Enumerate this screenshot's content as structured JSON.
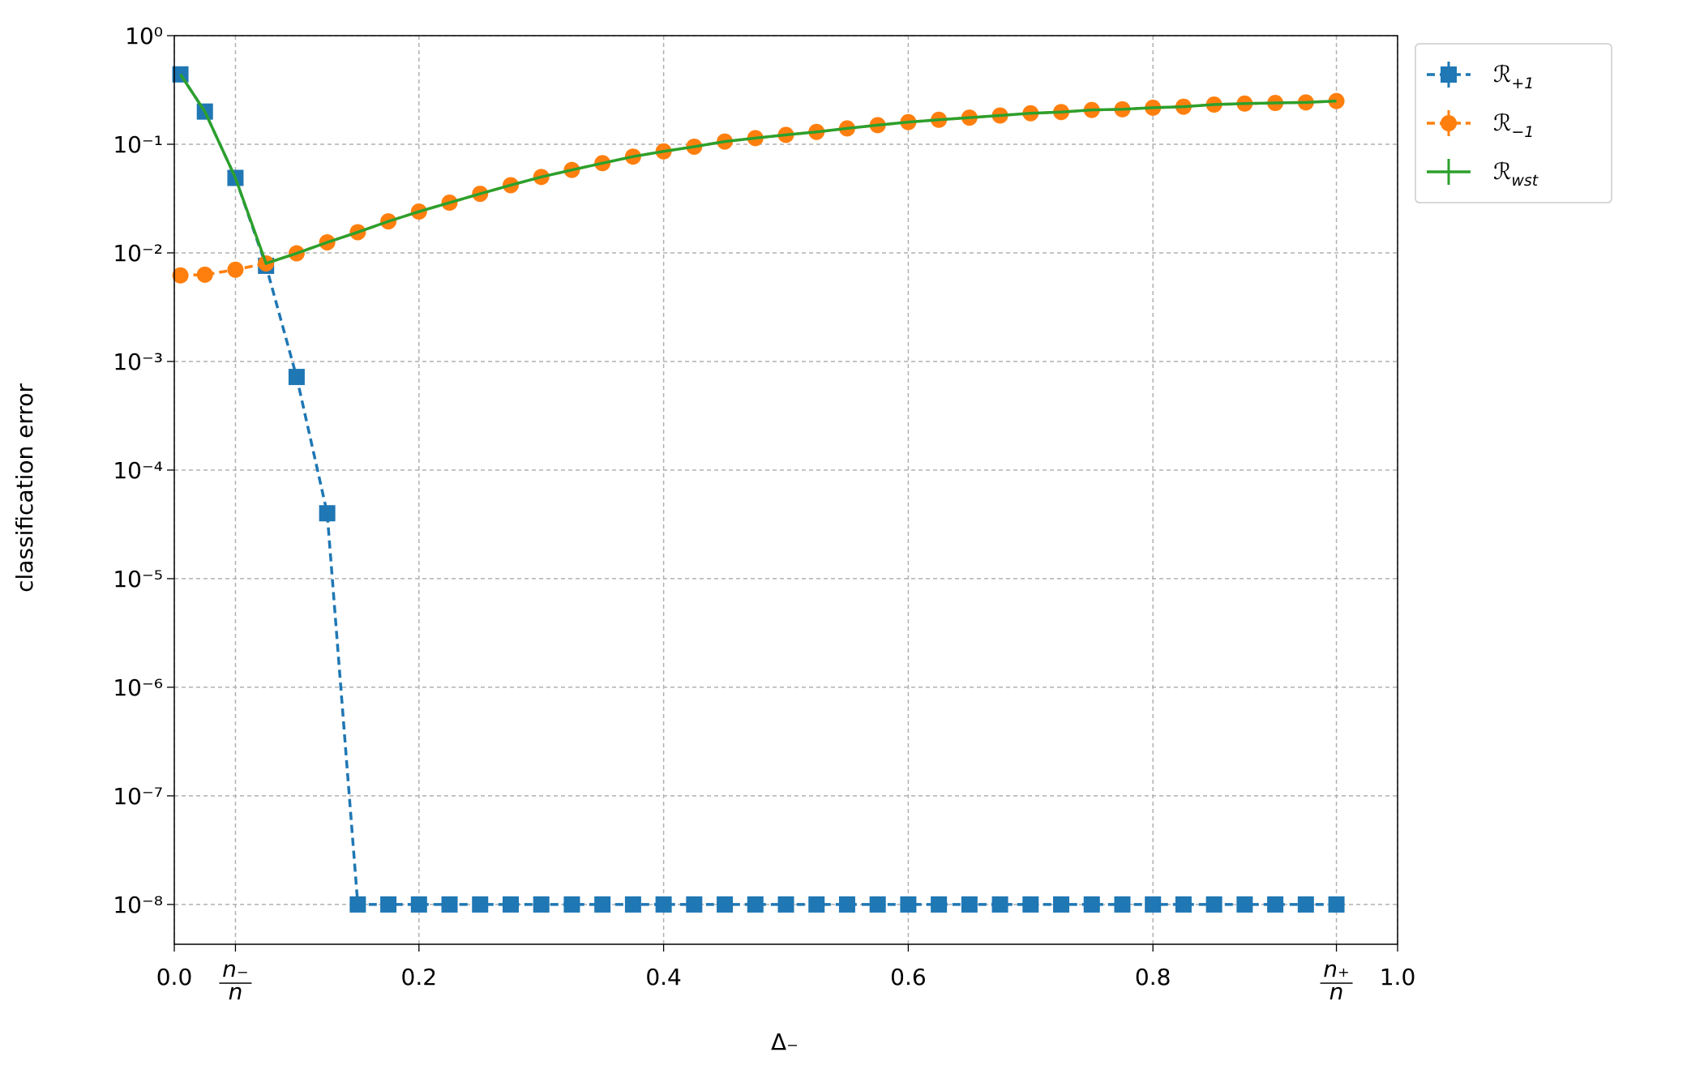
{
  "chart_data": {
    "type": "line",
    "yscale": "log",
    "grid": true,
    "legend": "outside upper right",
    "xlabel": "Δ₋",
    "ylabel": "classification error",
    "x": [
      0.005,
      0.025,
      0.05,
      0.075,
      0.1,
      0.125,
      0.15,
      0.175,
      0.2,
      0.225,
      0.25,
      0.275,
      0.3,
      0.325,
      0.35,
      0.375,
      0.4,
      0.425,
      0.45,
      0.475,
      0.5,
      0.525,
      0.55,
      0.575,
      0.6,
      0.625,
      0.65,
      0.675,
      0.7,
      0.725,
      0.75,
      0.775,
      0.8,
      0.825,
      0.85,
      0.875,
      0.9,
      0.925,
      0.95
    ],
    "xlim": [
      0,
      1
    ],
    "ylim": [
      4.3e-09,
      1
    ],
    "xticks": [
      {
        "value": 0,
        "label": "0.0"
      },
      {
        "value": 0.05,
        "label": "n₋/n"
      },
      0.2,
      0.4,
      0.6,
      0.8,
      {
        "value": 0.95,
        "label": "n₊/n"
      },
      {
        "value": 1,
        "label": "1.0"
      }
    ],
    "yticks": [
      {
        "value": 1,
        "label": "10⁰"
      },
      {
        "value": 0.1,
        "label": "10⁻¹"
      },
      {
        "value": 0.01,
        "label": "10⁻²"
      },
      {
        "value": 0.001,
        "label": "10⁻³"
      },
      {
        "value": 0.0001,
        "label": "10⁻⁴"
      },
      {
        "value": 1e-05,
        "label": "10⁻⁵"
      },
      {
        "value": 1e-06,
        "label": "10⁻⁶"
      },
      {
        "value": 1e-07,
        "label": "10⁻⁷"
      },
      {
        "value": 1e-08,
        "label": "10⁻⁸"
      }
    ],
    "series": [
      {
        "name": "ℛ",
        "subscript": "+1",
        "color": "#1f77b4",
        "marker": "square",
        "linestyle": "dashed",
        "values": [
          0.44,
          0.2,
          0.049,
          0.0076,
          0.00072,
          4e-05,
          1e-08,
          1e-08,
          1e-08,
          1e-08,
          1e-08,
          1e-08,
          1e-08,
          1e-08,
          1e-08,
          1e-08,
          1e-08,
          1e-08,
          1e-08,
          1e-08,
          1e-08,
          1e-08,
          1e-08,
          1e-08,
          1e-08,
          1e-08,
          1e-08,
          1e-08,
          1e-08,
          1e-08,
          1e-08,
          1e-08,
          1e-08,
          1e-08,
          1e-08,
          1e-08,
          1e-08,
          1e-08,
          1e-08
        ]
      },
      {
        "name": "ℛ",
        "subscript": "−1",
        "color": "#ff7f0e",
        "marker": "circle",
        "linestyle": "dashed",
        "values": [
          0.0062,
          0.0063,
          0.007,
          0.008,
          0.0099,
          0.0125,
          0.0155,
          0.0195,
          0.024,
          0.029,
          0.035,
          0.042,
          0.05,
          0.058,
          0.067,
          0.077,
          0.086,
          0.095,
          0.106,
          0.114,
          0.122,
          0.13,
          0.14,
          0.15,
          0.16,
          0.168,
          0.176,
          0.184,
          0.193,
          0.198,
          0.207,
          0.21,
          0.217,
          0.222,
          0.232,
          0.237,
          0.24,
          0.243,
          0.25
        ]
      },
      {
        "name": "ℛ",
        "subscript": "wst",
        "color": "#2ca02c",
        "marker": "plus",
        "linestyle": "solid",
        "values": [
          0.44,
          0.2,
          0.049,
          0.008,
          0.0099,
          0.0125,
          0.0155,
          0.0195,
          0.024,
          0.029,
          0.035,
          0.042,
          0.05,
          0.058,
          0.067,
          0.077,
          0.086,
          0.095,
          0.106,
          0.114,
          0.122,
          0.13,
          0.14,
          0.15,
          0.16,
          0.168,
          0.176,
          0.184,
          0.193,
          0.198,
          0.207,
          0.21,
          0.217,
          0.222,
          0.232,
          0.237,
          0.24,
          0.243,
          0.25
        ]
      }
    ]
  }
}
